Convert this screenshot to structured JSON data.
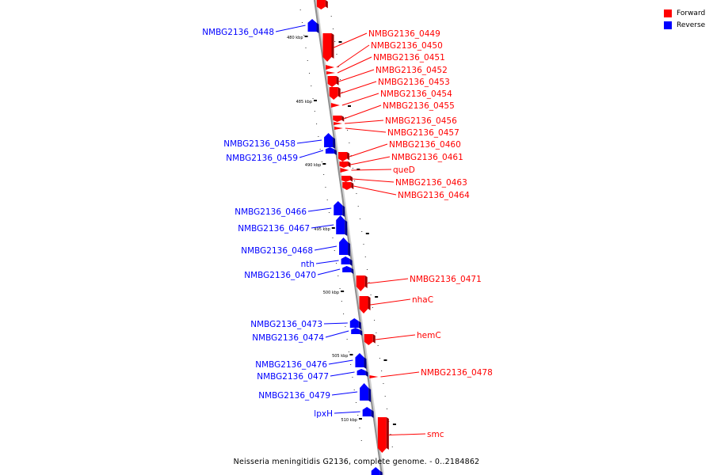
{
  "caption": "Neisseria meningitidis G2136, complete genome. - 0..2184862",
  "colors": {
    "forward": "#ff0000",
    "reverse": "#0000ff",
    "axis": "#909090"
  },
  "legend": [
    {
      "label": "Forward",
      "color": "#ff0000"
    },
    {
      "label": "Reverse",
      "color": "#0000ff"
    }
  ],
  "kbp_ticks": [
    "480 kbp",
    "485 kbp",
    "490 kbp",
    "495 kbp",
    "500 kbp",
    "505 kbp",
    "510 kbp"
  ],
  "forward_genes": [
    "NMBG2136_0449",
    "NMBG2136_0450",
    "NMBG2136_0451",
    "NMBG2136_0452",
    "NMBG2136_0453",
    "NMBG2136_0454",
    "NMBG2136_0455",
    "NMBG2136_0456",
    "NMBG2136_0457",
    "NMBG2136_0460",
    "NMBG2136_0461",
    "queD",
    "NMBG2136_0463",
    "NMBG2136_0464",
    "NMBG2136_0471",
    "nhaC",
    "hemC",
    "NMBG2136_0478",
    "smc"
  ],
  "reverse_genes": [
    "NMBG2136_0448",
    "NMBG2136_0458",
    "NMBG2136_0459",
    "NMBG2136_0466",
    "NMBG2136_0467",
    "NMBG2136_0468",
    "nth",
    "NMBG2136_0470",
    "NMBG2136_0473",
    "NMBG2136_0474",
    "NMBG2136_0476",
    "NMBG2136_0477",
    "NMBG2136_0479",
    "lpxH"
  ]
}
